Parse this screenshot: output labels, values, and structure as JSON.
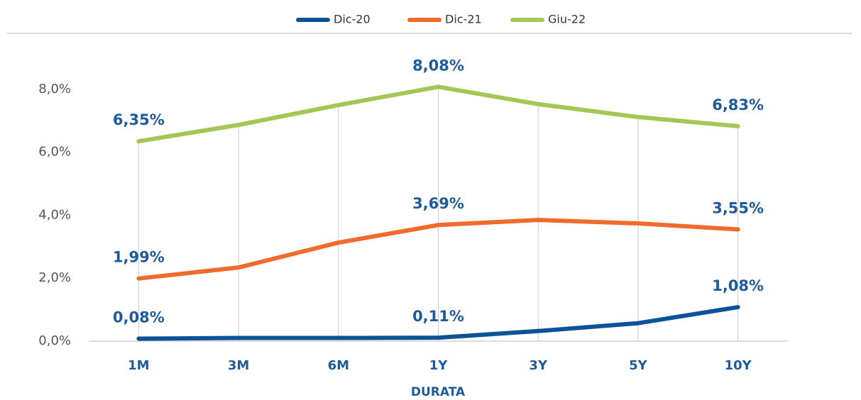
{
  "chart_data": {
    "type": "line",
    "x_label": "DURATA",
    "categories": [
      "1M",
      "3M",
      "6M",
      "1Y",
      "3Y",
      "5Y",
      "10Y"
    ],
    "series": [
      {
        "name": "Dic-20",
        "color": "#0b5396",
        "values": [
          0.08,
          0.1,
          0.1,
          0.11,
          0.32,
          0.57,
          1.08
        ],
        "value_labels": [
          "0,08%",
          null,
          null,
          "0,11%",
          null,
          null,
          "1,08%"
        ]
      },
      {
        "name": "Dic-21",
        "color": "#ee6b2b",
        "values": [
          1.99,
          2.34,
          3.13,
          3.69,
          3.85,
          3.74,
          3.55
        ],
        "value_labels": [
          "1,99%",
          null,
          null,
          "3,69%",
          null,
          null,
          "3,55%"
        ]
      },
      {
        "name": "Giu-22",
        "color": "#a4c654",
        "values": [
          6.35,
          6.87,
          7.5,
          8.08,
          7.53,
          7.12,
          6.83
        ],
        "value_labels": [
          "6,35%",
          null,
          null,
          "8,08%",
          null,
          null,
          "6,83%"
        ]
      }
    ],
    "ylim": [
      0,
      9
    ],
    "yticks": [
      {
        "value": 0,
        "label": "0,0%"
      },
      {
        "value": 2,
        "label": "2,0%"
      },
      {
        "value": 4,
        "label": "4,0%"
      },
      {
        "value": 6,
        "label": "6,0%"
      },
      {
        "value": 8,
        "label": "8,0%"
      }
    ],
    "legend": "top"
  }
}
